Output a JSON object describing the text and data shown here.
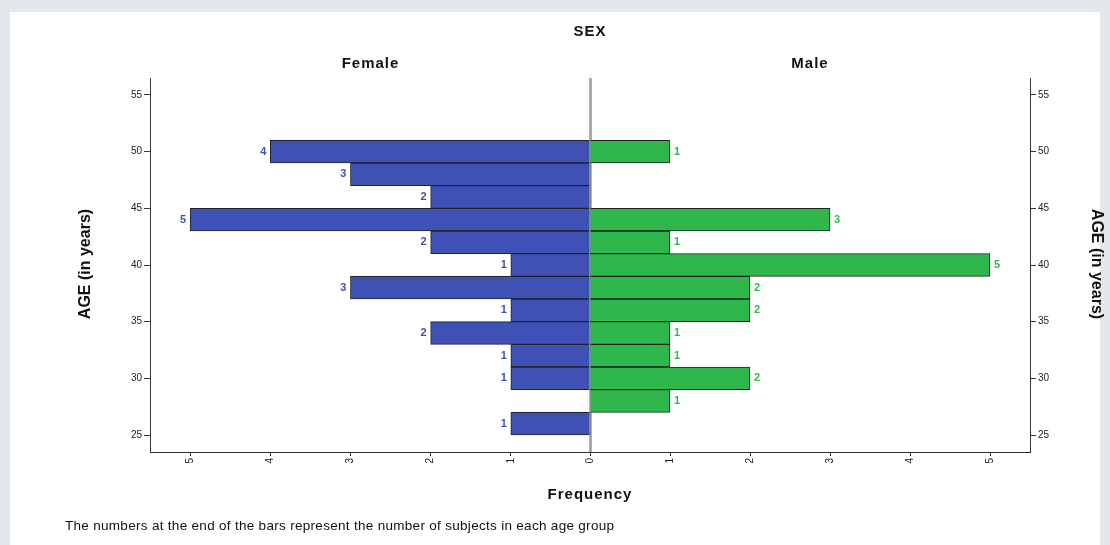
{
  "chart_data": [
    {
      "type": "bar",
      "orientation": "horizontal",
      "title": "SEX",
      "subtitle": "Female",
      "xlabel": "Frequency",
      "ylabel": "AGE (in years)",
      "annotations": [
        "The numbers at the end of the bars represent the number of subjects in each age group"
      ],
      "x": [
        26,
        28,
        30,
        32,
        34,
        36,
        38,
        40,
        42,
        44,
        46,
        48,
        50
      ],
      "series": [
        {
          "color": "#3f51b5",
          "values": [
            1,
            null,
            1,
            1,
            2,
            1,
            3,
            1,
            2,
            5,
            2,
            3,
            4
          ]
        }
      ],
      "xlim": [
        5.5,
        0
      ],
      "xticks": [
        1,
        2,
        3,
        4,
        5
      ],
      "ylim": [
        23.5,
        56.5
      ],
      "yticks": [
        25,
        30,
        35,
        40,
        45,
        50,
        55
      ],
      "data_labels": true
    },
    {
      "type": "bar",
      "orientation": "horizontal",
      "subtitle": "Male",
      "ylabel": "AGE (in years)",
      "x": [
        28,
        30,
        32,
        34,
        36,
        38,
        40,
        42,
        44,
        50
      ],
      "series": [
        {
          "color": "#2eb84b",
          "values": [
            1,
            2,
            1,
            1,
            2,
            2,
            5,
            1,
            3,
            1
          ]
        }
      ],
      "xlim": [
        0,
        5.5
      ],
      "xticks": [
        0,
        1,
        2,
        3,
        4,
        5
      ],
      "ylim": [
        23.5,
        56.5
      ],
      "yticks": [
        25,
        30,
        35,
        40,
        45,
        50,
        55
      ],
      "data_labels": true
    }
  ]
}
